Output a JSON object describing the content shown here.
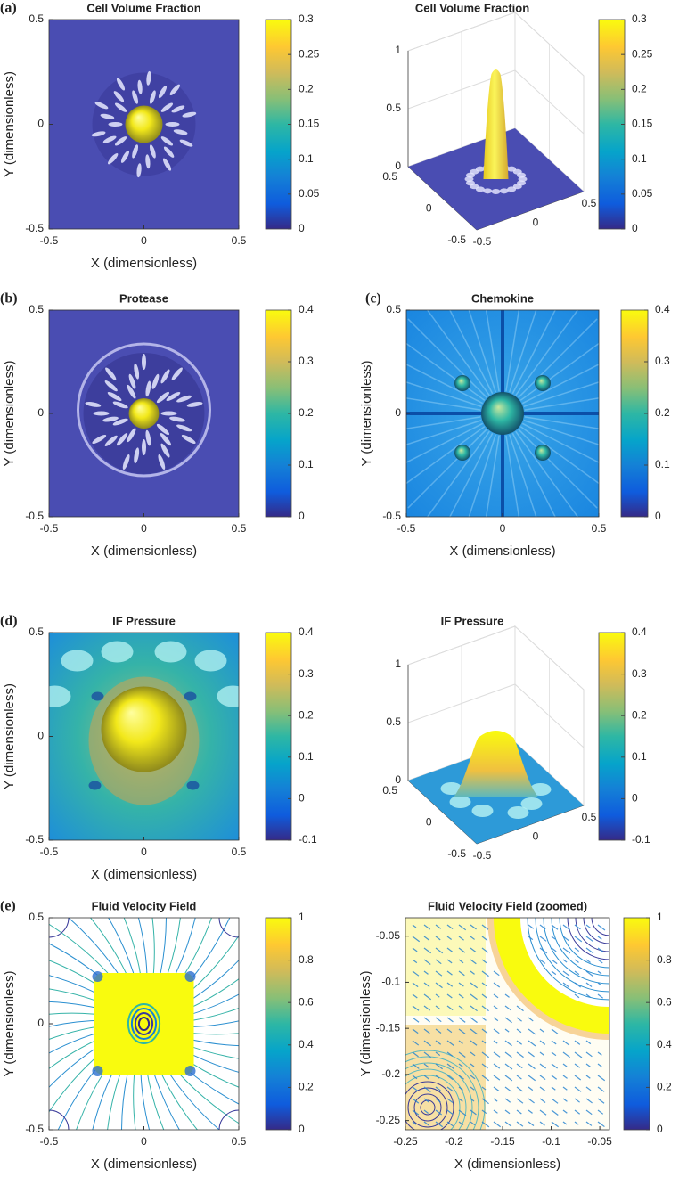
{
  "chart_data": [
    {
      "type": "heatmap",
      "panel_label": "(a)",
      "title": "Cell Volume Fraction",
      "xlabel": "X (dimensionless)",
      "ylabel": "Y (dimensionless)",
      "xlim": [
        -0.5,
        0.5
      ],
      "ylim": [
        -0.5,
        0.5
      ],
      "xticks": [
        -0.5,
        0,
        0.5
      ],
      "yticks": [
        -0.5,
        0,
        0.5
      ],
      "clim": [
        0,
        0.3
      ],
      "cticks": [
        0,
        0.05,
        0.1,
        0.15,
        0.2,
        0.25,
        0.3
      ]
    },
    {
      "type": "surface",
      "title": "Cell Volume Fraction",
      "xlim": [
        -0.5,
        0.5
      ],
      "ylim": [
        -0.5,
        0.5
      ],
      "zlim": [
        0,
        1
      ],
      "xticks": [
        -0.5,
        0,
        0.5
      ],
      "yticks": [
        -0.5,
        0,
        0.5
      ],
      "zticks": [
        0,
        0.5,
        1
      ],
      "clim": [
        0,
        0.3
      ],
      "cticks": [
        0,
        0.05,
        0.1,
        0.15,
        0.2,
        0.25,
        0.3
      ]
    },
    {
      "type": "heatmap",
      "panel_label": "(b)",
      "title": "Protease",
      "xlabel": "X (dimensionless)",
      "ylabel": "Y (dimensionless)",
      "xlim": [
        -0.5,
        0.5
      ],
      "ylim": [
        -0.5,
        0.5
      ],
      "xticks": [
        -0.5,
        0,
        0.5
      ],
      "yticks": [
        -0.5,
        0,
        0.5
      ],
      "clim": [
        0,
        0.4
      ],
      "cticks": [
        0,
        0.1,
        0.2,
        0.3,
        0.4
      ]
    },
    {
      "type": "heatmap",
      "panel_label": "(c)",
      "title": "Chemokine",
      "xlabel": "X (dimensionless)",
      "ylabel": "Y (dimensionless)",
      "xlim": [
        -0.5,
        0.5
      ],
      "ylim": [
        -0.5,
        0.5
      ],
      "xticks": [
        -0.5,
        0,
        0.5
      ],
      "yticks": [
        -0.5,
        0,
        0.5
      ],
      "clim": [
        0,
        0.4
      ],
      "cticks": [
        0,
        0.1,
        0.2,
        0.3,
        0.4
      ]
    },
    {
      "type": "heatmap",
      "panel_label": "(d)",
      "title": "IF Pressure",
      "xlabel": "X (dimensionless)",
      "ylabel": "Y (dimensionless)",
      "xlim": [
        -0.5,
        0.5
      ],
      "ylim": [
        -0.5,
        0.5
      ],
      "xticks": [
        -0.5,
        0,
        0.5
      ],
      "yticks": [
        -0.5,
        0,
        0.5
      ],
      "clim": [
        -0.1,
        0.4
      ],
      "cticks": [
        -0.1,
        0,
        0.1,
        0.2,
        0.3,
        0.4
      ]
    },
    {
      "type": "surface",
      "title": "IF Pressure",
      "xlim": [
        -0.5,
        0.5
      ],
      "ylim": [
        -0.5,
        0.5
      ],
      "zlim": [
        0,
        1
      ],
      "xticks": [
        -0.5,
        0,
        0.5
      ],
      "yticks": [
        -0.5,
        0,
        0.5
      ],
      "zticks": [
        0,
        0.5,
        1
      ],
      "clim": [
        -0.1,
        0.4
      ],
      "cticks": [
        -0.1,
        0,
        0.1,
        0.2,
        0.3,
        0.4
      ]
    },
    {
      "type": "contour",
      "panel_label": "(e)",
      "title": "Fluid Velocity Field",
      "xlabel": "X (dimensionless)",
      "ylabel": "Y (dimensionless)",
      "xlim": [
        -0.5,
        0.5
      ],
      "ylim": [
        -0.5,
        0.5
      ],
      "xticks": [
        -0.5,
        0,
        0.5
      ],
      "yticks": [
        -0.5,
        0,
        0.5
      ],
      "clim": [
        0,
        1
      ],
      "cticks": [
        0,
        0.2,
        0.4,
        0.6,
        0.8,
        1
      ]
    },
    {
      "type": "contour",
      "title": "Fluid Velocity Field (zoomed)",
      "xlabel": "X (dimensionless)",
      "ylabel": "Y (dimensionless)",
      "xlim": [
        -0.25,
        -0.04
      ],
      "ylim": [
        -0.26,
        -0.03
      ],
      "xticks": [
        -0.25,
        -0.2,
        -0.15,
        -0.1,
        -0.05
      ],
      "yticks": [
        -0.25,
        -0.2,
        -0.15,
        -0.1,
        -0.05
      ],
      "clim": [
        0,
        1
      ],
      "cticks": [
        0,
        0.2,
        0.4,
        0.6,
        0.8,
        1
      ]
    }
  ]
}
